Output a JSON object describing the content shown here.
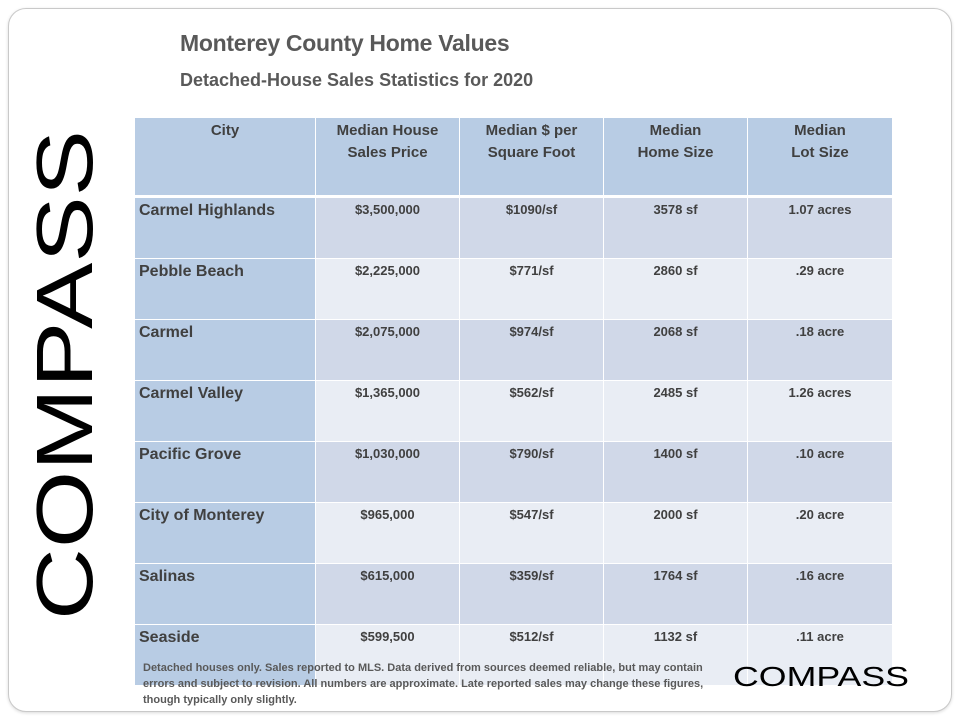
{
  "title": "Monterey County Home Values",
  "subtitle": "Detached-House Sales Statistics for 2020",
  "logo": {
    "vertical_text": "COMPASS",
    "footer_text": "COMPASS",
    "color": "#000000"
  },
  "colors": {
    "header_bg": "#b8cce4",
    "city_bg": "#b8cce4",
    "row_odd_bg": "#d0d8e8",
    "row_even_bg": "#e9edf4",
    "text": "#404040"
  },
  "table": {
    "headers": [
      {
        "line1": "City",
        "line2": ""
      },
      {
        "line1": "Median House",
        "line2": "Sales Price"
      },
      {
        "line1": "Median $ per",
        "line2": "Square Foot"
      },
      {
        "line1": "Median",
        "line2": "Home Size"
      },
      {
        "line1": "Median",
        "line2": "Lot Size"
      }
    ],
    "rows": [
      {
        "city": "Carmel Highlands",
        "price": "$3,500,000",
        "per_sf": "$1090/sf",
        "home_size": "3578 sf",
        "lot_size": "1.07 acres"
      },
      {
        "city": "Pebble Beach",
        "price": "$2,225,000",
        "per_sf": "$771/sf",
        "home_size": "2860 sf",
        "lot_size": ".29 acre"
      },
      {
        "city": "Carmel",
        "price": "$2,075,000",
        "per_sf": "$974/sf",
        "home_size": "2068 sf",
        "lot_size": ".18 acre"
      },
      {
        "city": "Carmel Valley",
        "price": "$1,365,000",
        "per_sf": "$562/sf",
        "home_size": "2485 sf",
        "lot_size": "1.26 acres"
      },
      {
        "city": "Pacific Grove",
        "price": "$1,030,000",
        "per_sf": "$790/sf",
        "home_size": "1400 sf",
        "lot_size": ".10 acre"
      },
      {
        "city": "City of Monterey",
        "price": "$965,000",
        "per_sf": "$547/sf",
        "home_size": "2000 sf",
        "lot_size": ".20 acre"
      },
      {
        "city": "Salinas",
        "price": "$615,000",
        "per_sf": "$359/sf",
        "home_size": "1764 sf",
        "lot_size": ".16 acre"
      },
      {
        "city": "Seaside",
        "price": "$599,500",
        "per_sf": "$512/sf",
        "home_size": "1132 sf",
        "lot_size": ".11 acre"
      }
    ]
  },
  "footnote": "Detached houses only. Sales reported to MLS. Data derived from sources deemed reliable, but may contain errors and subject to revision. All numbers are approximate. Late reported sales may change these figures, though typically only slightly."
}
